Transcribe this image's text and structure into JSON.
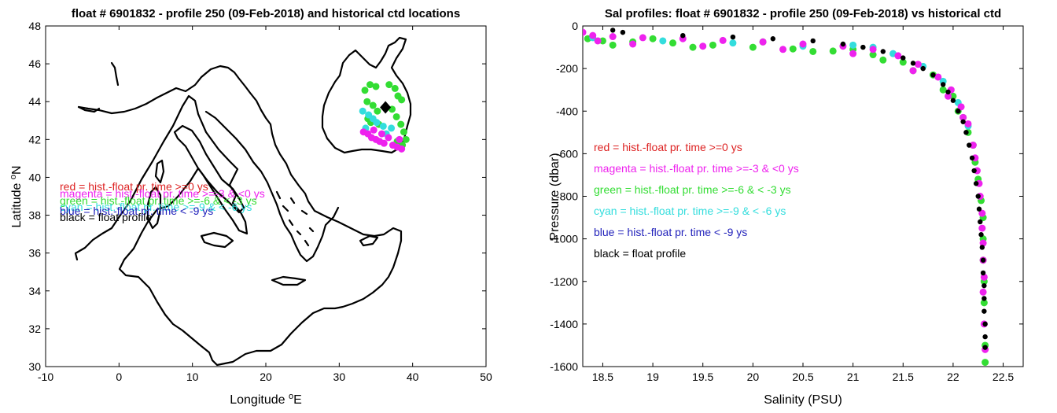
{
  "colors": {
    "red": "#dd2222",
    "magenta": "#ee22ee",
    "green": "#33dd33",
    "cyan": "#33dddd",
    "blue": "#2222bb",
    "black": "#000000"
  },
  "legend": [
    {
      "key": "red",
      "text": "red = hist.-float pr. time >=0 ys"
    },
    {
      "key": "magenta",
      "text": "magenta = hist.-float pr. time >=-3 & <0 ys"
    },
    {
      "key": "green",
      "text": "green = hist.-float pr. time >=-6 & < -3 ys"
    },
    {
      "key": "cyan",
      "text": "cyan = hist.-float pr. time >=-9 & < -6 ys"
    },
    {
      "key": "blue",
      "text": "blue = hist.-float pr. time < -9 ys"
    },
    {
      "key": "black",
      "text": "black = float profile"
    }
  ],
  "chart_data": [
    {
      "type": "scatter",
      "title": "float # 6901832 - profile 250 (09-Feb-2018) and historical ctd locations",
      "xlabel_main": "Longitude ",
      "xlabel_sup": "o",
      "xlabel_tail": "E",
      "ylabel_main": "Latitude ",
      "ylabel_sup": "o",
      "ylabel_tail": "N",
      "xlim": [
        -10,
        50
      ],
      "ylim": [
        30,
        48
      ],
      "xticks": [
        -10,
        0,
        10,
        20,
        30,
        40,
        50
      ],
      "yticks": [
        30,
        32,
        34,
        36,
        38,
        40,
        42,
        44,
        46,
        48
      ],
      "float_position": {
        "lon": 36.3,
        "lat": 43.7
      },
      "series": [
        {
          "key": "green",
          "points": [
            [
              33.5,
              44.6
            ],
            [
              34.2,
              44.9
            ],
            [
              35.0,
              44.8
            ],
            [
              36.8,
              44.9
            ],
            [
              37.6,
              44.7
            ],
            [
              38.0,
              44.3
            ],
            [
              38.5,
              44.1
            ],
            [
              33.8,
              44.0
            ],
            [
              34.6,
              43.8
            ],
            [
              35.2,
              43.5
            ],
            [
              37.2,
              43.6
            ],
            [
              37.8,
              43.2
            ],
            [
              38.4,
              42.8
            ],
            [
              38.8,
              42.4
            ],
            [
              39.1,
              42.0
            ],
            [
              38.6,
              41.7
            ],
            [
              37.9,
              41.9
            ],
            [
              33.9,
              43.1
            ],
            [
              34.3,
              42.9
            ],
            [
              35.4,
              42.8
            ]
          ]
        },
        {
          "key": "cyan",
          "points": [
            [
              33.2,
              43.5
            ],
            [
              34.0,
              43.3
            ],
            [
              34.6,
              43.1
            ],
            [
              35.1,
              42.9
            ],
            [
              36.0,
              42.7
            ],
            [
              36.4,
              42.3
            ],
            [
              37.1,
              42.6
            ],
            [
              33.6,
              42.6
            ]
          ]
        },
        {
          "key": "magenta",
          "points": [
            [
              33.3,
              42.4
            ],
            [
              33.9,
              42.3
            ],
            [
              34.4,
              42.1
            ],
            [
              35.0,
              42.0
            ],
            [
              35.5,
              41.9
            ],
            [
              36.1,
              41.8
            ],
            [
              36.7,
              42.1
            ],
            [
              37.3,
              41.7
            ],
            [
              37.9,
              41.6
            ],
            [
              38.5,
              41.5
            ],
            [
              38.2,
              42.0
            ],
            [
              34.7,
              42.5
            ],
            [
              35.8,
              42.3
            ]
          ]
        }
      ]
    },
    {
      "type": "scatter",
      "title": "Sal profiles: float # 6901832 - profile 250 (09-Feb-2018) vs historical ctd",
      "xlabel": "Salinity (PSU)",
      "ylabel": "Pressure (dbar)",
      "xlim": [
        18.3,
        22.7
      ],
      "ylim": [
        -1600,
        0
      ],
      "xticks": [
        18.5,
        19,
        19.5,
        20,
        20.5,
        21,
        21.5,
        22,
        22.5
      ],
      "yticks": [
        0,
        -200,
        -400,
        -600,
        -800,
        -1000,
        -1200,
        -1400,
        -1600
      ],
      "series": [
        {
          "key": "green",
          "points": [
            [
              18.35,
              -60
            ],
            [
              18.5,
              -70
            ],
            [
              18.8,
              -75
            ],
            [
              19.2,
              -80
            ],
            [
              19.6,
              -90
            ],
            [
              20.0,
              -100
            ],
            [
              20.4,
              -108
            ],
            [
              20.8,
              -118
            ],
            [
              21.2,
              -135
            ],
            [
              21.5,
              -170
            ],
            [
              21.8,
              -230
            ],
            [
              22.0,
              -330
            ],
            [
              22.1,
              -430
            ],
            [
              22.2,
              -560
            ],
            [
              22.25,
              -720
            ],
            [
              22.3,
              -900
            ],
            [
              22.3,
              -1100
            ],
            [
              22.31,
              -1300
            ],
            [
              22.32,
              -1500
            ],
            [
              22.32,
              -1580
            ],
            [
              18.6,
              -90
            ],
            [
              19.0,
              -60
            ],
            [
              19.4,
              -100
            ],
            [
              20.1,
              -75
            ],
            [
              20.6,
              -120
            ],
            [
              21.0,
              -110
            ],
            [
              21.3,
              -160
            ],
            [
              21.6,
              -210
            ],
            [
              21.9,
              -300
            ],
            [
              22.05,
              -400
            ],
            [
              22.15,
              -500
            ],
            [
              22.22,
              -640
            ],
            [
              22.28,
              -820
            ],
            [
              22.3,
              -1000
            ],
            [
              22.31,
              -1200
            ]
          ]
        },
        {
          "key": "cyan",
          "points": [
            [
              18.4,
              -55
            ],
            [
              19.1,
              -70
            ],
            [
              19.8,
              -80
            ],
            [
              20.5,
              -95
            ],
            [
              21.0,
              -90
            ],
            [
              21.2,
              -100
            ],
            [
              21.4,
              -130
            ],
            [
              21.7,
              -190
            ],
            [
              21.9,
              -260
            ],
            [
              22.05,
              -360
            ],
            [
              22.15,
              -470
            ]
          ]
        },
        {
          "key": "magenta",
          "points": [
            [
              18.3,
              -30
            ],
            [
              18.4,
              -45
            ],
            [
              18.6,
              -50
            ],
            [
              18.9,
              -55
            ],
            [
              19.3,
              -60
            ],
            [
              19.7,
              -68
            ],
            [
              20.1,
              -75
            ],
            [
              20.5,
              -85
            ],
            [
              20.9,
              -95
            ],
            [
              21.2,
              -110
            ],
            [
              21.45,
              -140
            ],
            [
              21.65,
              -180
            ],
            [
              21.85,
              -240
            ],
            [
              21.98,
              -300
            ],
            [
              22.08,
              -380
            ],
            [
              22.15,
              -460
            ],
            [
              22.2,
              -560
            ],
            [
              22.24,
              -680
            ],
            [
              22.27,
              -800
            ],
            [
              22.29,
              -950
            ],
            [
              22.3,
              -1100
            ],
            [
              22.3,
              -1250
            ],
            [
              22.31,
              -1400
            ],
            [
              22.32,
              -1520
            ],
            [
              18.45,
              -70
            ],
            [
              18.8,
              -85
            ],
            [
              19.5,
              -95
            ],
            [
              20.3,
              -110
            ],
            [
              21.0,
              -130
            ],
            [
              21.6,
              -210
            ],
            [
              21.95,
              -330
            ],
            [
              22.1,
              -430
            ],
            [
              22.22,
              -620
            ],
            [
              22.26,
              -740
            ],
            [
              22.29,
              -880
            ],
            [
              22.3,
              -1020
            ],
            [
              22.31,
              -1180
            ]
          ]
        },
        {
          "key": "black",
          "points": [
            [
              18.6,
              -20
            ],
            [
              18.7,
              -30
            ],
            [
              19.3,
              -45
            ],
            [
              19.8,
              -52
            ],
            [
              20.2,
              -60
            ],
            [
              20.6,
              -70
            ],
            [
              20.9,
              -85
            ],
            [
              21.1,
              -100
            ],
            [
              21.3,
              -120
            ],
            [
              21.5,
              -150
            ],
            [
              21.6,
              -175
            ],
            [
              21.7,
              -200
            ],
            [
              21.8,
              -230
            ],
            [
              21.9,
              -275
            ],
            [
              21.95,
              -310
            ],
            [
              22.0,
              -350
            ],
            [
              22.05,
              -400
            ],
            [
              22.1,
              -450
            ],
            [
              22.13,
              -500
            ],
            [
              22.16,
              -560
            ],
            [
              22.19,
              -620
            ],
            [
              22.21,
              -680
            ],
            [
              22.23,
              -740
            ],
            [
              22.25,
              -800
            ],
            [
              22.26,
              -860
            ],
            [
              22.27,
              -920
            ],
            [
              22.28,
              -980
            ],
            [
              22.29,
              -1040
            ],
            [
              22.3,
              -1100
            ],
            [
              22.3,
              -1160
            ],
            [
              22.31,
              -1220
            ],
            [
              22.31,
              -1280
            ],
            [
              22.31,
              -1340
            ],
            [
              22.32,
              -1400
            ],
            [
              22.32,
              -1460
            ],
            [
              22.32,
              -1510
            ]
          ]
        }
      ]
    }
  ]
}
